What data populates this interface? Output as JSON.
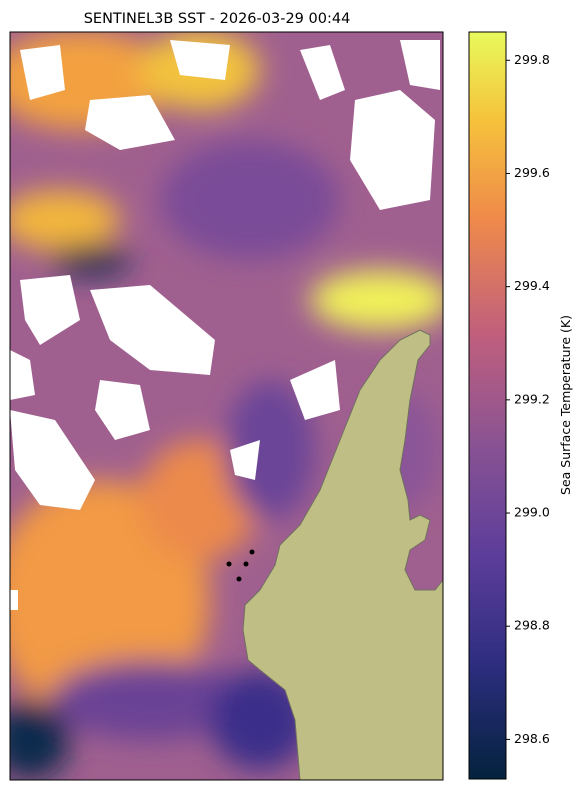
{
  "chart_data": {
    "type": "colorbar",
    "title": "SENTINEL3B SST - 2026-03-29 00:44",
    "ylabel": "Sea Surface Temperature (K)",
    "ylim": [
      298.53,
      299.85
    ],
    "yticks": [
      298.6,
      298.8,
      {
        "value": 299,
        "label": "299.0"
      },
      299.2,
      299.4,
      299.6,
      299.8
    ]
  }
}
